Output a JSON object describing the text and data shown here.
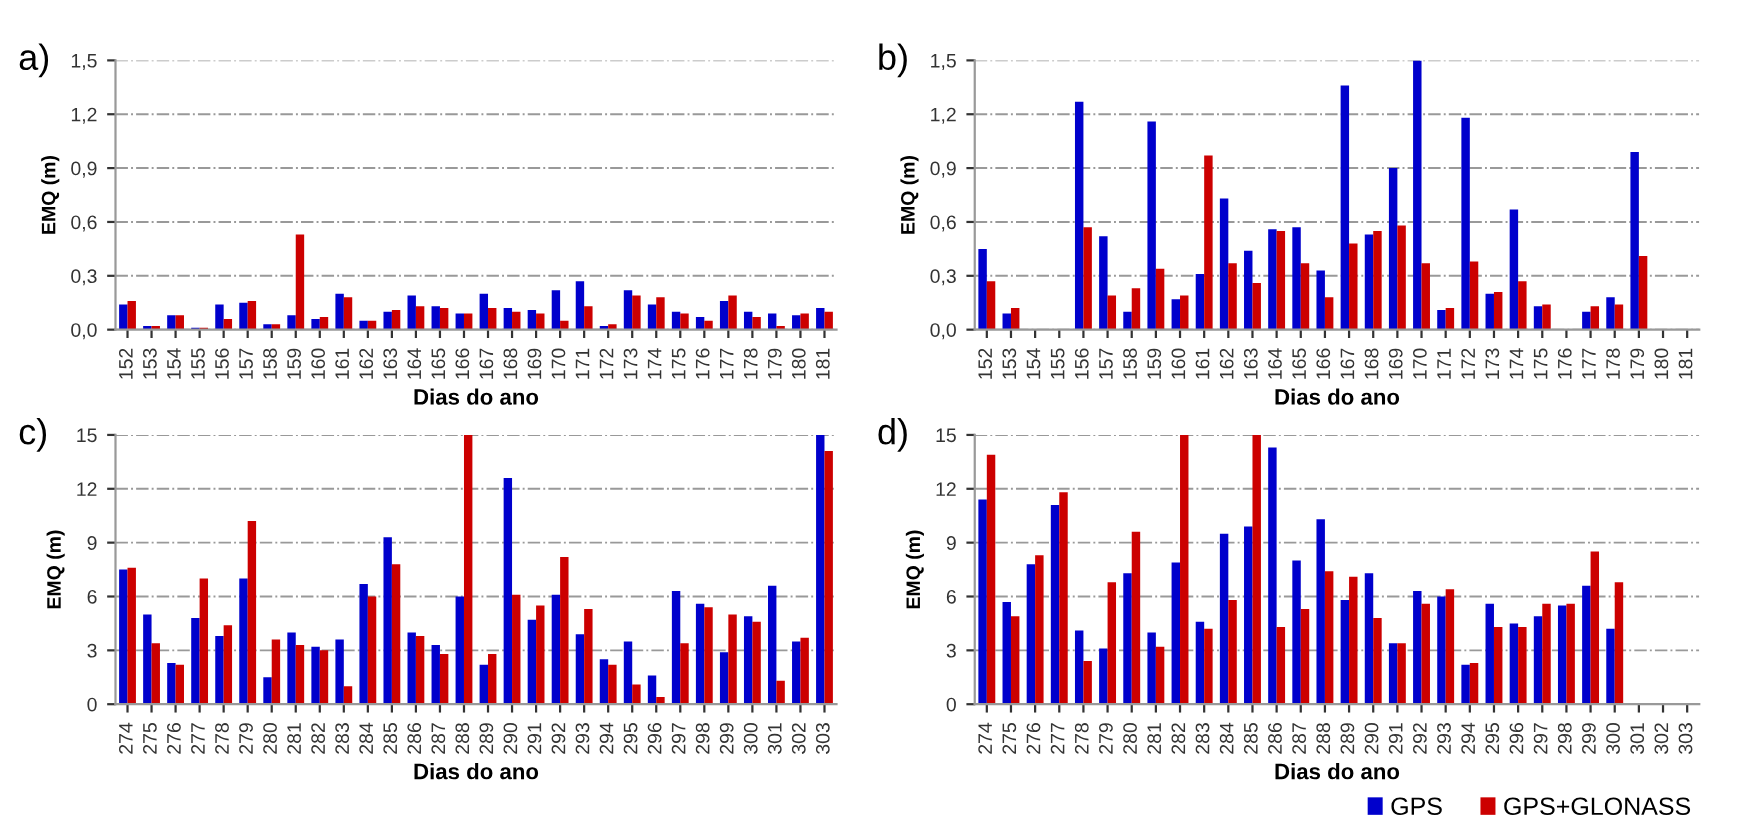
{
  "chart_data": [
    {
      "type": "bar",
      "title": "a)",
      "xlabel": "Dias do ano",
      "ylabel": "EMQ (m)",
      "categories": [
        "152",
        "153",
        "154",
        "155",
        "156",
        "157",
        "158",
        "159",
        "160",
        "161",
        "162",
        "163",
        "164",
        "165",
        "166",
        "167",
        "168",
        "169",
        "170",
        "171",
        "172",
        "173",
        "174",
        "175",
        "176",
        "177",
        "178",
        "179",
        "180",
        "181"
      ],
      "series": [
        {
          "color": "#0000cc",
          "values": [
            0.14,
            0.02,
            0.08,
            0.01,
            0.14,
            0.15,
            0.03,
            0.08,
            0.06,
            0.2,
            0.05,
            0.1,
            0.19,
            0.13,
            0.09,
            0.2,
            0.12,
            0.11,
            0.22,
            0.27,
            0.02,
            0.22,
            0.14,
            0.1,
            0.07,
            0.16,
            0.1,
            0.09,
            0.08,
            0.12
          ]
        },
        {
          "color": "#cc0000",
          "values": [
            0.16,
            0.02,
            0.08,
            0.01,
            0.06,
            0.16,
            0.03,
            0.53,
            0.07,
            0.18,
            0.05,
            0.11,
            0.13,
            0.12,
            0.09,
            0.12,
            0.1,
            0.09,
            0.05,
            0.13,
            0.03,
            0.19,
            0.18,
            0.09,
            0.05,
            0.19,
            0.07,
            0.02,
            0.09,
            0.1
          ]
        }
      ],
      "ylim": [
        0,
        1.5
      ],
      "yticks": [
        {
          "value": 0,
          "label": "0,0"
        },
        {
          "value": 0.3,
          "label": "0,3"
        },
        {
          "value": 0.6,
          "label": "0,6"
        },
        {
          "value": 0.9,
          "label": "0,9"
        },
        {
          "value": 1.2,
          "label": "1,2"
        },
        {
          "value": 1.5,
          "label": "1,5"
        }
      ],
      "grid": "y"
    },
    {
      "type": "bar",
      "title": "b)",
      "xlabel": "Dias do ano",
      "ylabel": "EMQ (m)",
      "categories": [
        "152",
        "153",
        "154",
        "155",
        "156",
        "157",
        "158",
        "159",
        "160",
        "161",
        "162",
        "163",
        "164",
        "165",
        "166",
        "167",
        "168",
        "169",
        "170",
        "171",
        "172",
        "173",
        "174",
        "175",
        "176",
        "177",
        "178",
        "179",
        "180",
        "181"
      ],
      "series": [
        {
          "color": "#0000cc",
          "values": [
            0.45,
            0.09,
            null,
            null,
            1.27,
            0.52,
            0.1,
            1.16,
            0.17,
            0.31,
            0.73,
            0.44,
            0.56,
            0.57,
            0.33,
            1.36,
            0.53,
            0.9,
            1.5,
            0.11,
            1.18,
            0.2,
            0.67,
            0.13,
            null,
            0.1,
            0.18,
            0.99,
            null,
            null
          ]
        },
        {
          "color": "#cc0000",
          "values": [
            0.27,
            0.12,
            null,
            null,
            0.57,
            0.19,
            0.23,
            0.34,
            0.19,
            0.97,
            0.37,
            0.26,
            0.55,
            0.37,
            0.18,
            0.48,
            0.55,
            0.58,
            0.37,
            0.12,
            0.38,
            0.21,
            0.27,
            0.14,
            null,
            0.13,
            0.14,
            0.41,
            null,
            null
          ]
        }
      ],
      "ylim": [
        0,
        1.5
      ],
      "yticks": [
        {
          "value": 0,
          "label": "0,0"
        },
        {
          "value": 0.3,
          "label": "0,3"
        },
        {
          "value": 0.6,
          "label": "0,6"
        },
        {
          "value": 0.9,
          "label": "0,9"
        },
        {
          "value": 1.2,
          "label": "1,2"
        },
        {
          "value": 1.5,
          "label": "1,5"
        }
      ],
      "grid": "y"
    },
    {
      "type": "bar",
      "title": "c)",
      "xlabel": "Dias do ano",
      "ylabel": "EMQ (m)",
      "categories": [
        "274",
        "275",
        "276",
        "277",
        "278",
        "279",
        "280",
        "281",
        "282",
        "283",
        "284",
        "285",
        "286",
        "287",
        "288",
        "289",
        "290",
        "291",
        "292",
        "293",
        "294",
        "295",
        "296",
        "297",
        "298",
        "299",
        "300",
        "301",
        "302",
        "303"
      ],
      "series": [
        {
          "color": "#0000cc",
          "values": [
            7.5,
            5.0,
            2.3,
            4.8,
            3.8,
            7.0,
            1.5,
            4.0,
            3.2,
            3.6,
            6.7,
            9.3,
            4.0,
            3.3,
            6.0,
            2.2,
            12.6,
            4.7,
            6.1,
            3.9,
            2.5,
            3.5,
            1.6,
            6.3,
            5.6,
            2.9,
            4.9,
            6.6,
            3.5,
            15.0
          ]
        },
        {
          "color": "#cc0000",
          "values": [
            7.6,
            3.4,
            2.2,
            7.0,
            4.4,
            10.2,
            3.6,
            3.3,
            3.0,
            1.0,
            6.0,
            7.8,
            3.8,
            2.8,
            15.0,
            2.8,
            6.1,
            5.5,
            8.2,
            5.3,
            2.2,
            1.1,
            0.4,
            3.4,
            5.4,
            5.0,
            4.6,
            1.3,
            3.7,
            14.1
          ]
        }
      ],
      "ylim": [
        0,
        15
      ],
      "yticks": [
        0,
        3,
        6,
        9,
        12,
        15
      ],
      "grid": "y"
    },
    {
      "type": "bar",
      "title": "d)",
      "xlabel": "Dias do ano",
      "ylabel": "EMQ (m)",
      "categories": [
        "274",
        "275",
        "276",
        "277",
        "278",
        "279",
        "280",
        "281",
        "282",
        "283",
        "284",
        "285",
        "286",
        "287",
        "288",
        "289",
        "290",
        "291",
        "292",
        "293",
        "294",
        "295",
        "296",
        "297",
        "298",
        "299",
        "300",
        "301",
        "302",
        "303"
      ],
      "series": [
        {
          "name": "GPS",
          "color": "#0000cc",
          "values": [
            11.4,
            5.7,
            7.8,
            11.1,
            4.1,
            3.1,
            7.3,
            4.0,
            7.9,
            4.6,
            9.5,
            9.9,
            14.3,
            8.0,
            10.3,
            5.8,
            7.3,
            3.4,
            6.3,
            6.0,
            2.2,
            5.6,
            4.5,
            4.9,
            5.5,
            6.6,
            4.2,
            null,
            null,
            null
          ]
        },
        {
          "name": "GPS+GLONASS",
          "color": "#cc0000",
          "values": [
            13.9,
            4.9,
            8.3,
            11.8,
            2.4,
            6.8,
            9.6,
            3.2,
            15.0,
            4.2,
            5.8,
            15.0,
            4.3,
            5.3,
            7.4,
            7.1,
            4.8,
            3.4,
            5.6,
            6.4,
            2.3,
            4.3,
            4.3,
            5.6,
            5.6,
            8.5,
            6.8,
            null,
            null,
            null
          ]
        }
      ],
      "ylim": [
        0,
        15
      ],
      "yticks": [
        0,
        3,
        6,
        9,
        12,
        15
      ],
      "grid": "y",
      "legend": "bottom right"
    }
  ]
}
